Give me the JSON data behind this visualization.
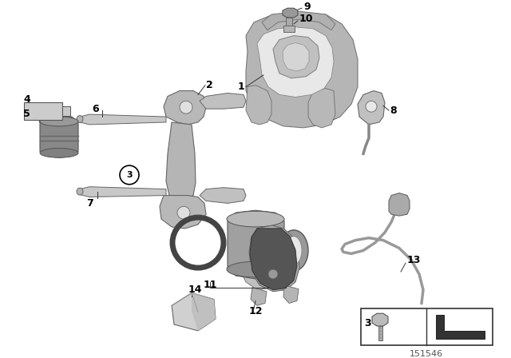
{
  "bg_color": "#ffffff",
  "fig_id": "151546",
  "gray_light": "#c8c8c8",
  "gray_mid": "#aaaaaa",
  "gray_dark": "#888888",
  "gray_darker": "#666666",
  "gray_darkest": "#444444",
  "black": "#111111",
  "label_color": "#000000",
  "line_color": "#555555"
}
